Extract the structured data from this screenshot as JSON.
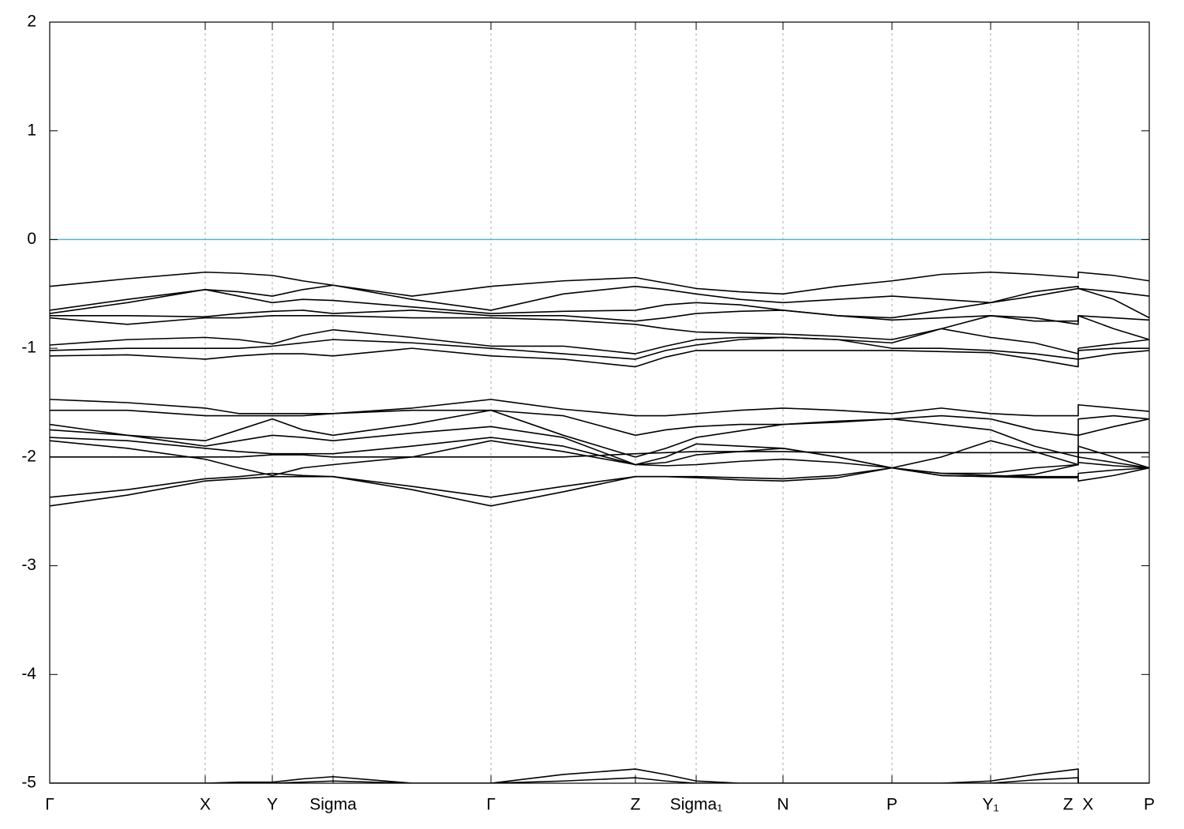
{
  "chart_data": {
    "type": "line",
    "x": [
      0,
      0.985,
      1.97,
      2.395,
      2.82,
      3.205,
      3.59,
      4.59,
      5.59,
      6.505,
      7.42,
      7.805,
      8.19,
      8.74,
      9.29,
      9.98,
      10.67,
      11.295,
      11.92,
      12.475,
      13.03,
      13.03,
      13.48,
      13.93
    ],
    "xlim": [
      0,
      13.93
    ],
    "xticks": [
      {
        "value": 0,
        "label": "Γ"
      },
      {
        "value": 1.97,
        "label": "X"
      },
      {
        "value": 2.82,
        "label": "Y"
      },
      {
        "value": 3.59,
        "label": "Sigma"
      },
      {
        "value": 5.59,
        "label": "Γ"
      },
      {
        "value": 7.42,
        "label": "Z"
      },
      {
        "value": 8.19,
        "label": "Sigma₁"
      },
      {
        "value": 9.29,
        "label": "N"
      },
      {
        "value": 10.67,
        "label": "P"
      },
      {
        "value": 11.92,
        "label": "Y₁"
      },
      {
        "value": 13.03,
        "label": "Z  X"
      },
      {
        "value": 13.93,
        "label": "P"
      }
    ],
    "ylim": [
      -5,
      2
    ],
    "yticks": [
      -5,
      -4,
      -3,
      -2,
      -1,
      0,
      1,
      2
    ],
    "xgrid": true,
    "fermi_level": 0,
    "fermi_color": "#5ab4c8",
    "series": [
      {
        "color": "#000000",
        "values": [
          -0.43,
          -0.36,
          -0.3,
          -0.31,
          -0.33,
          -0.38,
          -0.42,
          -0.52,
          -0.43,
          -0.38,
          -0.35,
          -0.4,
          -0.45,
          -0.48,
          -0.5,
          -0.43,
          -0.38,
          -0.32,
          -0.3,
          -0.32,
          -0.35,
          -0.3,
          -0.33,
          -0.38
        ]
      },
      {
        "color": "#000000",
        "values": [
          -0.65,
          -0.55,
          -0.46,
          -0.48,
          -0.52,
          -0.46,
          -0.42,
          -0.55,
          -0.65,
          -0.5,
          -0.43,
          -0.46,
          -0.5,
          -0.55,
          -0.58,
          -0.55,
          -0.52,
          -0.55,
          -0.58,
          -0.48,
          -0.43,
          -0.45,
          -0.48,
          -0.52
        ]
      },
      {
        "color": "#000000",
        "values": [
          -0.68,
          -0.58,
          -0.46,
          -0.52,
          -0.58,
          -0.55,
          -0.56,
          -0.62,
          -0.68,
          -0.66,
          -0.65,
          -0.6,
          -0.58,
          -0.6,
          -0.65,
          -0.7,
          -0.72,
          -0.65,
          -0.58,
          -0.52,
          -0.45,
          -0.45,
          -0.55,
          -0.72
        ]
      },
      {
        "color": "#000000",
        "values": [
          -0.7,
          -0.7,
          -0.71,
          -0.68,
          -0.66,
          -0.65,
          -0.68,
          -0.65,
          -0.7,
          -0.7,
          -0.75,
          -0.72,
          -0.68,
          -0.66,
          -0.65,
          -0.7,
          -0.74,
          -0.72,
          -0.7,
          -0.75,
          -0.75,
          -0.7,
          -0.72,
          -0.74
        ]
      },
      {
        "color": "#000000",
        "values": [
          -0.72,
          -0.78,
          -0.72,
          -0.72,
          -0.7,
          -0.7,
          -0.7,
          -0.72,
          -0.72,
          -0.74,
          -0.78,
          -0.82,
          -0.85,
          -0.86,
          -0.87,
          -0.89,
          -0.92,
          -0.82,
          -0.7,
          -0.72,
          -0.78,
          -0.7,
          -0.82,
          -0.92
        ]
      },
      {
        "color": "#000000",
        "values": [
          -0.97,
          -0.92,
          -0.9,
          -0.92,
          -0.96,
          -0.88,
          -0.83,
          -0.9,
          -0.98,
          -0.98,
          -1.05,
          -0.98,
          -0.92,
          -0.9,
          -0.9,
          -0.92,
          -0.95,
          -0.82,
          -0.9,
          -0.95,
          -1.05,
          -1.0,
          -0.96,
          -0.92
        ]
      },
      {
        "color": "#000000",
        "values": [
          -1.02,
          -1.0,
          -1.0,
          -1.0,
          -0.98,
          -0.95,
          -0.92,
          -0.95,
          -1.0,
          -1.05,
          -1.1,
          -1.02,
          -0.97,
          -0.92,
          -0.9,
          -0.92,
          -1.0,
          -1.0,
          -1.02,
          -1.05,
          -1.1,
          -1.02,
          -1.0,
          -1.0
        ]
      },
      {
        "color": "#000000",
        "values": [
          -1.07,
          -1.06,
          -1.1,
          -1.07,
          -1.05,
          -1.05,
          -1.07,
          -1.0,
          -1.07,
          -1.1,
          -1.17,
          -1.08,
          -1.02,
          -1.02,
          -1.02,
          -1.02,
          -1.02,
          -1.03,
          -1.04,
          -1.1,
          -1.17,
          -1.1,
          -1.05,
          -1.02
        ]
      },
      {
        "color": "#000000",
        "values": [
          -1.47,
          -1.5,
          -1.55,
          -1.6,
          -1.6,
          -1.6,
          -1.6,
          -1.55,
          -1.47,
          -1.56,
          -1.62,
          -1.62,
          -1.6,
          -1.57,
          -1.55,
          -1.57,
          -1.6,
          -1.55,
          -1.6,
          -1.62,
          -1.62,
          -1.52,
          -1.55,
          -1.58
        ]
      },
      {
        "color": "#000000",
        "values": [
          -1.57,
          -1.57,
          -1.62,
          -1.62,
          -1.62,
          -1.62,
          -1.6,
          -1.57,
          -1.57,
          -1.62,
          -1.8,
          -1.75,
          -1.72,
          -1.7,
          -1.7,
          -1.67,
          -1.65,
          -1.62,
          -1.65,
          -1.75,
          -1.8,
          -1.65,
          -1.62,
          -1.65
        ]
      },
      {
        "color": "#000000",
        "values": [
          -1.7,
          -1.8,
          -1.85,
          -1.75,
          -1.65,
          -1.75,
          -1.8,
          -1.7,
          -1.57,
          -1.8,
          -2.0,
          -1.92,
          -1.82,
          -1.76,
          -1.7,
          -1.68,
          -1.65,
          -1.7,
          -1.75,
          -1.9,
          -2.0,
          -1.8,
          -1.72,
          -1.65
        ]
      },
      {
        "color": "#000000",
        "values": [
          -1.75,
          -1.8,
          -1.9,
          -1.85,
          -1.8,
          -1.82,
          -1.85,
          -1.78,
          -1.72,
          -1.82,
          -2.07,
          -2.0,
          -1.88,
          -1.9,
          -1.92,
          -2.0,
          -2.1,
          -2.0,
          -1.85,
          -1.95,
          -2.07,
          -1.9,
          -2.0,
          -2.1
        ]
      },
      {
        "color": "#000000",
        "values": [
          -1.82,
          -1.85,
          -1.92,
          -1.95,
          -1.97,
          -1.97,
          -1.97,
          -1.9,
          -1.82,
          -1.9,
          -2.07,
          -2.08,
          -2.07,
          -2.04,
          -2.02,
          -2.05,
          -2.1,
          -2.15,
          -2.15,
          -2.1,
          -2.07,
          -2.0,
          -2.05,
          -2.1
        ]
      },
      {
        "color": "#000000",
        "values": [
          -1.85,
          -1.92,
          -2.02,
          -2.1,
          -2.17,
          -2.1,
          -2.07,
          -2.0,
          -1.85,
          -1.95,
          -2.07,
          -2.05,
          -1.98,
          -1.95,
          -1.92,
          -2.0,
          -2.1,
          -2.17,
          -2.18,
          -2.16,
          -2.07,
          -2.05,
          -2.08,
          -2.1
        ]
      },
      {
        "color": "#000000",
        "values": [
          -2.0,
          -2.0,
          -2.0,
          -2.0,
          -1.98,
          -1.98,
          -2.0,
          -2.0,
          -2.0,
          -2.0,
          -1.97,
          -1.96,
          -1.95,
          -1.95,
          -1.95,
          -1.96,
          -1.96,
          -1.96,
          -1.96,
          -1.96,
          -1.96,
          -1.96,
          -1.96,
          -1.96
        ]
      },
      {
        "color": "#000000",
        "values": [
          -2.37,
          -2.3,
          -2.2,
          -2.18,
          -2.15,
          -2.17,
          -2.18,
          -2.27,
          -2.37,
          -2.27,
          -2.18,
          -2.18,
          -2.18,
          -2.19,
          -2.2,
          -2.17,
          -2.1,
          -2.15,
          -2.17,
          -2.18,
          -2.18,
          -2.15,
          -2.12,
          -2.1
        ]
      },
      {
        "color": "#000000",
        "values": [
          -2.45,
          -2.35,
          -2.22,
          -2.2,
          -2.18,
          -2.18,
          -2.18,
          -2.3,
          -2.45,
          -2.32,
          -2.18,
          -2.18,
          -2.19,
          -2.21,
          -2.22,
          -2.19,
          -2.1,
          -2.17,
          -2.18,
          -2.19,
          -2.19,
          -2.22,
          -2.17,
          -2.1
        ]
      },
      {
        "color": "#000000",
        "values": [
          -5.0,
          -5.0,
          -5.0,
          -4.99,
          -4.99,
          -4.96,
          -4.94,
          -5.0,
          -5.0,
          -4.92,
          -4.87,
          -4.92,
          -4.98,
          -5.0,
          -5.0,
          -5.0,
          -5.0,
          -5.0,
          -4.98,
          -4.92,
          -4.87,
          -5.0,
          -5.0,
          -5.0
        ]
      },
      {
        "color": "#000000",
        "values": [
          -5.0,
          -5.0,
          -5.0,
          -5.0,
          -5.0,
          -4.99,
          -4.98,
          -5.0,
          -5.0,
          -4.98,
          -4.95,
          -4.98,
          -5.0,
          -5.0,
          -5.0,
          -5.0,
          -5.0,
          -5.0,
          -5.0,
          -4.97,
          -4.95,
          -5.0,
          -5.0,
          -5.0
        ]
      }
    ]
  }
}
